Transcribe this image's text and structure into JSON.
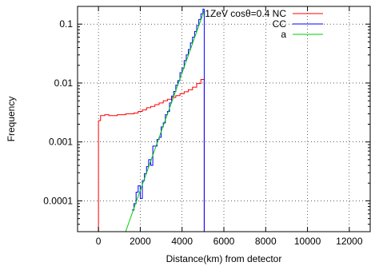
{
  "chart_data": {
    "type": "line",
    "xlabel": "Distance(km) from detector",
    "ylabel": "Frequency",
    "xlim": [
      -1000,
      13000
    ],
    "ylim": [
      3e-05,
      0.2
    ],
    "y_scale": "log",
    "grid": true,
    "legend_position": "top-right",
    "x_ticks": [
      0,
      2000,
      4000,
      6000,
      8000,
      10000,
      12000
    ],
    "y_ticks": [
      0.0001,
      0.001,
      0.01,
      0.1
    ],
    "x_tick_labels": [
      "0",
      "2000",
      "4000",
      "6000",
      "8000",
      "10000",
      "12000"
    ],
    "y_tick_labels": [
      "0.0001",
      "0.001",
      "0.01",
      "0.1"
    ],
    "series": [
      {
        "name": "1ZeV cosθ=0.4 NC",
        "color": "#ff0000",
        "style": "steps",
        "x": [
          0,
          100,
          300,
          500,
          700,
          900,
          1100,
          1300,
          1500,
          1700,
          1900,
          2100,
          2300,
          2500,
          2700,
          2900,
          3100,
          3300,
          3500,
          3700,
          3900,
          4100,
          4300,
          4500,
          4700,
          4900,
          5060
        ],
        "y": [
          0.0023,
          0.0028,
          0.0029,
          0.0028,
          0.0028,
          0.0029,
          0.0029,
          0.003,
          0.003,
          0.0031,
          0.0033,
          0.0035,
          0.0038,
          0.004,
          0.0043,
          0.0046,
          0.005,
          0.0053,
          0.0057,
          0.0061,
          0.0066,
          0.0071,
          0.0077,
          0.0085,
          0.0098,
          0.0115,
          0.0118
        ]
      },
      {
        "name": "CC",
        "color": "#0000ff",
        "style": "steps",
        "x": [
          1600,
          1700,
          1800,
          1900,
          2000,
          2100,
          2200,
          2300,
          2400,
          2500,
          2600,
          2700,
          2800,
          2900,
          3000,
          3100,
          3200,
          3300,
          3400,
          3500,
          3600,
          3700,
          3800,
          3900,
          4000,
          4100,
          4200,
          4300,
          4400,
          4500,
          4600,
          4700,
          4800,
          4900,
          5000,
          5060
        ],
        "y": [
          7e-05,
          9e-05,
          0.00014,
          0.00018,
          0.00011,
          0.00022,
          0.00029,
          0.00038,
          0.0005,
          0.0004,
          0.00085,
          0.00085,
          0.0011,
          0.0012,
          0.0018,
          0.0021,
          0.0029,
          0.0033,
          0.0046,
          0.006,
          0.0072,
          0.0092,
          0.011,
          0.015,
          0.018,
          0.024,
          0.03,
          0.037,
          0.048,
          0.06,
          0.075,
          0.095,
          0.12,
          0.15,
          0.18,
          0.18
        ]
      },
      {
        "name": "a",
        "color": "#00cc00",
        "style": "line",
        "x": [
          1300,
          5060
        ],
        "y": [
          3e-05,
          0.17
        ]
      }
    ],
    "vertical_drops": [
      {
        "series": 0,
        "x": 0,
        "y_top": 0.0023
      },
      {
        "series": 0,
        "x": 5060,
        "y_top": 0.0118
      },
      {
        "series": 1,
        "x": 5060,
        "y_top": 0.18
      }
    ]
  }
}
